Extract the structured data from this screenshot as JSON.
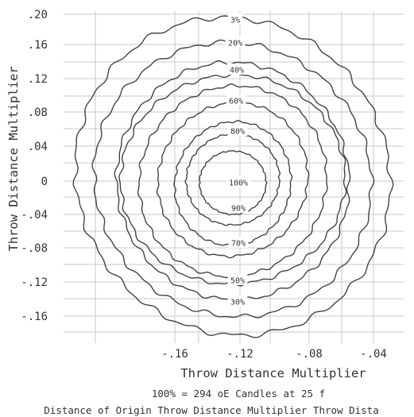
{
  "chart_data": {
    "type": "contour",
    "title": "",
    "xlabel": "Throw Distance Multiplier",
    "ylabel": "Throw Distance Multiplier",
    "x_tick_labels": [
      "-.16",
      "-.12",
      "-.08",
      "-.04"
    ],
    "y_tick_labels": [
      ".20",
      ".16",
      ".12",
      ".08",
      ".04",
      "0",
      "-.04",
      "-.08",
      "-.12",
      "-.16"
    ],
    "grid": true,
    "footer_lines": [
      "100% = 294 oE Candles at 25 f",
      "Distance of Origin  Throw Distance Multiplier  Throw Dista"
    ],
    "contours": [
      {
        "label": "3%",
        "value": 3
      },
      {
        "label": "20%",
        "value": 20
      },
      {
        "label": "40%",
        "value": 40
      },
      {
        "label": "60%",
        "value": 60
      },
      {
        "label": "80%",
        "value": 80
      },
      {
        "label": "100%",
        "value": 100
      },
      {
        "label": "90%",
        "value": 90
      },
      {
        "label": "70%",
        "value": 70
      },
      {
        "label": "50%",
        "value": 50
      },
      {
        "label": "30%",
        "value": 30
      }
    ]
  }
}
